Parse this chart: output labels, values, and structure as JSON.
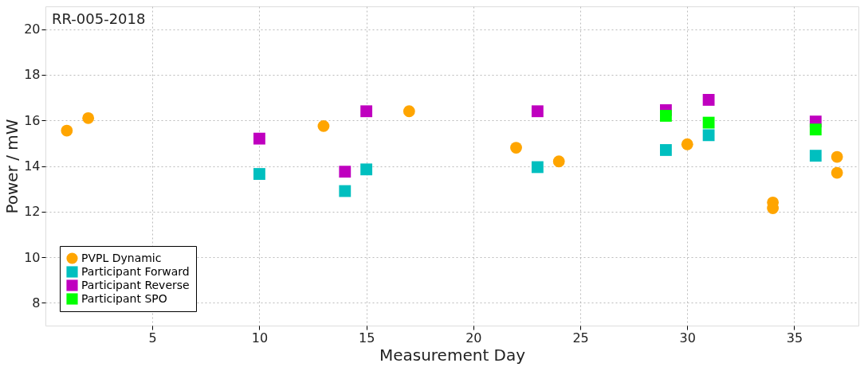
{
  "chart_data": {
    "type": "scatter",
    "xlabel": "Measurement Day",
    "ylabel": "Power / mW",
    "annotations": [
      "RR-005-2018"
    ],
    "xlim": [
      0,
      38
    ],
    "xticks": [
      5,
      10,
      15,
      20,
      25,
      30,
      35
    ],
    "ylim": [
      7,
      21
    ],
    "yticks": [
      8,
      10,
      12,
      14,
      16,
      18,
      20
    ],
    "grid": true,
    "legend": "bottom left",
    "series": [
      {
        "name": "PVPL Dynamic",
        "color": "#ffa500",
        "marker": "circle",
        "x": [
          1,
          2,
          13,
          17,
          22,
          24,
          30,
          34,
          34,
          37,
          37
        ],
        "values": [
          15.55,
          16.1,
          15.75,
          16.4,
          14.8,
          14.2,
          14.95,
          12.4,
          12.15,
          14.4,
          13.7
        ]
      },
      {
        "name": "Participant Forward",
        "color": "#00bfbf",
        "marker": "square",
        "x": [
          10,
          14,
          15,
          23,
          29,
          31,
          36
        ],
        "values": [
          13.65,
          12.9,
          13.85,
          13.95,
          14.7,
          15.35,
          14.45
        ]
      },
      {
        "name": "Participant Reverse",
        "color": "#bf00bf",
        "marker": "square",
        "x": [
          10,
          14,
          15,
          23,
          29,
          31,
          36
        ],
        "values": [
          15.2,
          13.75,
          16.4,
          16.4,
          16.45,
          16.9,
          15.95
        ]
      },
      {
        "name": "Participant SPO",
        "color": "#00ff00",
        "marker": "square",
        "x": [
          29,
          31,
          36
        ],
        "values": [
          16.2,
          15.9,
          15.6
        ]
      }
    ]
  }
}
